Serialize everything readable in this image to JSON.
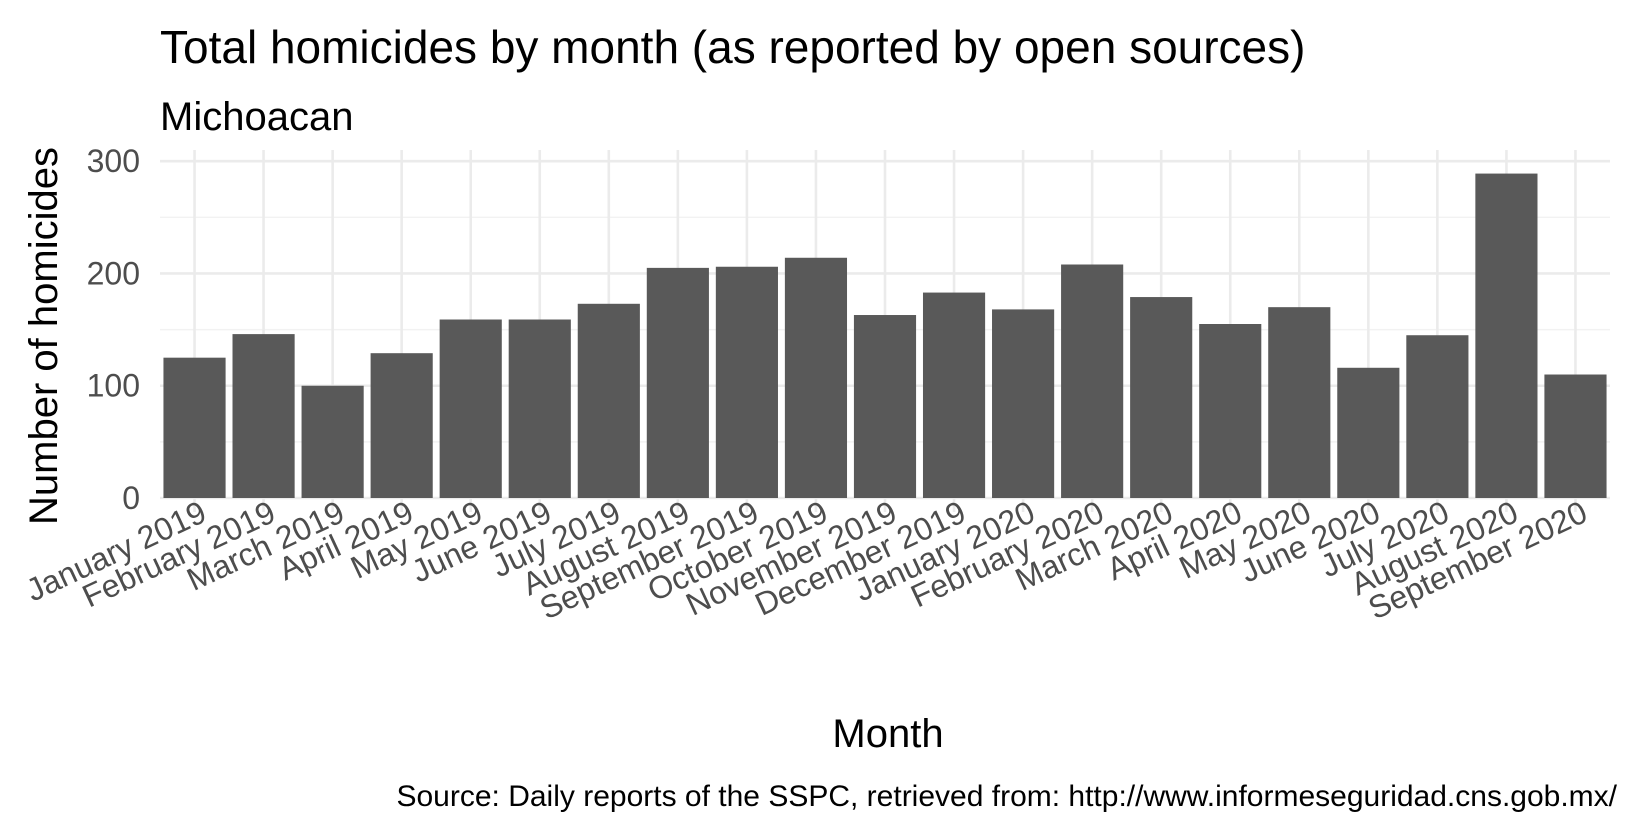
{
  "chart_data": {
    "type": "bar",
    "title": "Total homicides by month (as reported by open sources)",
    "subtitle": "Michoacan",
    "xlabel": "Month",
    "ylabel": "Number of homicides",
    "caption": "Source: Daily reports of the SSPC, retrieved from: http://www.informeseguridad.cns.gob.mx/",
    "categories": [
      "January 2019",
      "February 2019",
      "March 2019",
      "April 2019",
      "May 2019",
      "June 2019",
      "July 2019",
      "August 2019",
      "September 2019",
      "October 2019",
      "November 2019",
      "December 2019",
      "January 2020",
      "February 2020",
      "March 2020",
      "April 2020",
      "May 2020",
      "June 2020",
      "July 2020",
      "August 2020",
      "September 2020"
    ],
    "values": [
      125,
      146,
      100,
      129,
      159,
      159,
      173,
      205,
      206,
      214,
      163,
      183,
      168,
      208,
      179,
      155,
      170,
      116,
      145,
      289,
      110
    ],
    "yticks": [
      0,
      100,
      200,
      300
    ],
    "ylim": [
      0,
      310
    ],
    "grid": true,
    "bar_color": "#595959"
  }
}
